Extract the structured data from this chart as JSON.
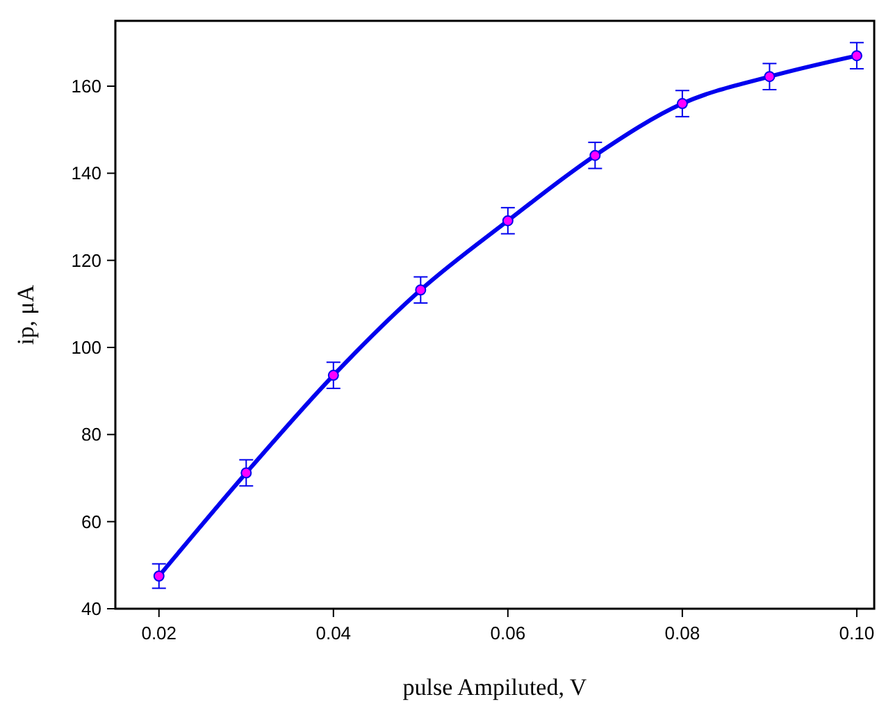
{
  "chart_data": {
    "type": "line",
    "xlabel": "pulse Ampiluted, V",
    "ylabel": "ip, μA",
    "x": [
      0.02,
      0.03,
      0.04,
      0.05,
      0.06,
      0.07,
      0.08,
      0.09,
      0.1
    ],
    "series": [
      {
        "color": "#0000ee",
        "values": [
          47.5,
          71.2,
          93.6,
          113.2,
          129.1,
          144.1,
          156,
          162.2,
          167
        ],
        "errors": [
          2.8,
          3,
          3,
          3,
          3,
          3,
          3,
          3,
          3
        ]
      }
    ],
    "xlim": [
      0.015,
      0.102
    ],
    "ylim": [
      40,
      175
    ],
    "xticks": [
      0.02,
      0.04,
      0.06,
      0.08,
      {
        "value": 0.1,
        "label": "0.10"
      }
    ],
    "yticks": [
      40,
      60,
      80,
      100,
      120,
      140,
      160
    ],
    "marker": "circle",
    "line_style": "solid",
    "grid": false
  }
}
